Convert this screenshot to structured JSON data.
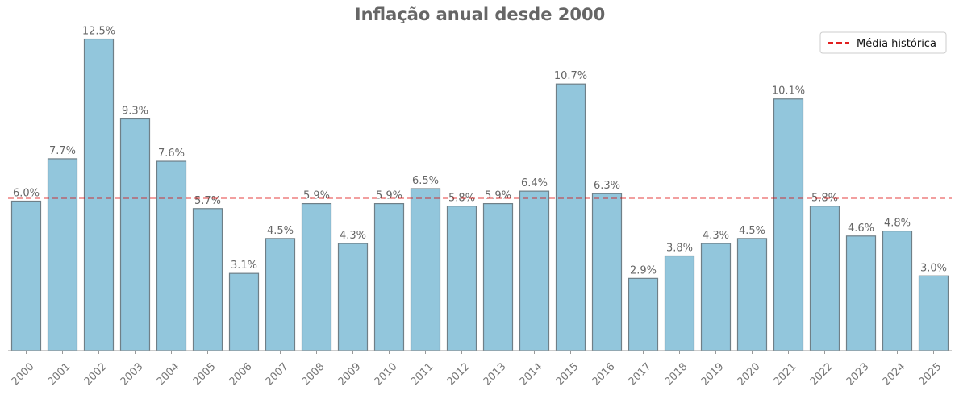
{
  "chart_data": {
    "type": "bar",
    "title": "Inflação anual desde 2000",
    "xlabel": "",
    "ylabel": "",
    "categories": [
      "2000",
      "2001",
      "2002",
      "2003",
      "2004",
      "2005",
      "2006",
      "2007",
      "2008",
      "2009",
      "2010",
      "2011",
      "2012",
      "2013",
      "2014",
      "2015",
      "2016",
      "2017",
      "2018",
      "2019",
      "2020",
      "2021",
      "2022",
      "2023",
      "2024",
      "2025"
    ],
    "values": [
      6.0,
      7.7,
      12.5,
      9.3,
      7.6,
      5.7,
      3.1,
      4.5,
      5.9,
      4.3,
      5.9,
      6.5,
      5.8,
      5.9,
      6.4,
      10.7,
      6.3,
      2.9,
      3.8,
      4.3,
      4.5,
      10.1,
      5.8,
      4.6,
      4.8,
      3.0
    ],
    "data_labels": [
      "6.0%",
      "7.7%",
      "12.5%",
      "9.3%",
      "7.6%",
      "5.7%",
      "3.1%",
      "4.5%",
      "5.9%",
      "4.3%",
      "5.9%",
      "6.5%",
      "5.8%",
      "5.9%",
      "6.4%",
      "10.7%",
      "6.3%",
      "2.9%",
      "3.8%",
      "4.3%",
      "4.5%",
      "10.1%",
      "5.8%",
      "4.6%",
      "4.8%",
      "3.0%"
    ],
    "ylim": [
      0,
      13.1
    ],
    "reference_line": {
      "name": "Média histórica",
      "value": 6.13,
      "color": "#dd0000",
      "style": "dashed"
    },
    "bar_color": "#92c6dc",
    "bar_edge_color": "#6f7f87",
    "legend": {
      "position": "top-right",
      "entries": [
        "Média histórica"
      ]
    },
    "grid": false
  }
}
